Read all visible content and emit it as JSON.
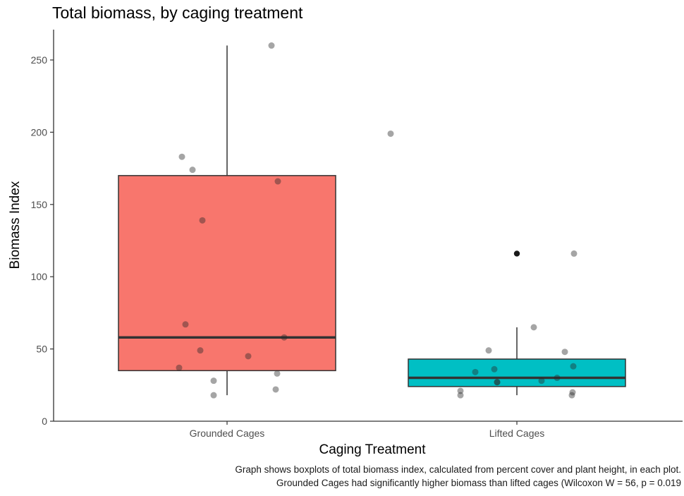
{
  "chart_data": {
    "type": "boxplot",
    "title": "Total biomass, by caging treatment",
    "xlabel": "Caging Treatment",
    "ylabel": "Biomass Index",
    "ylim": [
      0,
      270
    ],
    "yticks": [
      0,
      50,
      100,
      150,
      200,
      250
    ],
    "grid": false,
    "legend": "none",
    "caption": [
      "Graph shows boxplots of total biomass index, calculated from percent cover and plant height, in each plot.",
      "Grounded Cages had significantly higher biomass than lifted cages (Wilcoxon W = 56, p = 0.019"
    ],
    "categories": [
      "Grounded Cages",
      "Lifted Cages"
    ],
    "boxes": [
      {
        "category": "Grounded Cages",
        "color": "#F8766D",
        "whisker_low": 18,
        "q1": 35,
        "median": 58,
        "q3": 170,
        "whisker_high": 260,
        "outliers": [],
        "points": [
          260,
          199,
          183,
          174,
          166,
          139,
          67,
          58,
          49,
          45,
          37,
          33,
          28,
          22,
          18
        ]
      },
      {
        "category": "Lifted Cages",
        "color": "#00BFC4",
        "whisker_low": 18,
        "q1": 24,
        "median": 30,
        "q3": 43,
        "whisker_high": 65,
        "outliers": [
          116
        ],
        "points": [
          116,
          65,
          49,
          48,
          38,
          36,
          34,
          30,
          28,
          27,
          27,
          21,
          20,
          18,
          18
        ]
      }
    ]
  }
}
